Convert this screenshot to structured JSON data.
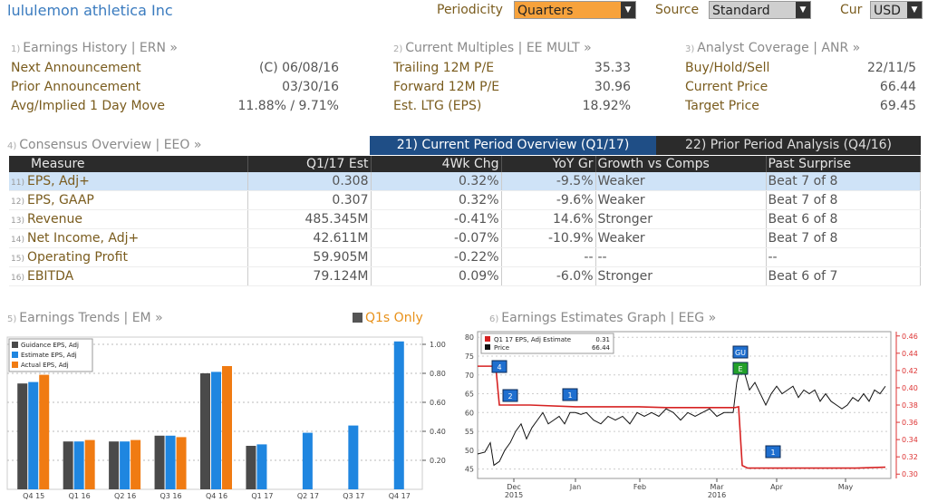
{
  "header": {
    "company": "lululemon athletica Inc",
    "periodicity_label": "Periodicity",
    "periodicity_value": "Quarters",
    "source_label": "Source",
    "source_value": "Standard",
    "cur_label": "Cur",
    "cur_value": "USD"
  },
  "earnings_history": {
    "num": "1)",
    "title": "Earnings History | ERN »",
    "rows": [
      {
        "label": "Next Announcement",
        "value": "(C)  06/08/16"
      },
      {
        "label": "Prior Announcement",
        "value": "03/30/16"
      },
      {
        "label": "Avg/Implied 1 Day Move",
        "value": "11.88% / 9.71%"
      }
    ]
  },
  "current_multiples": {
    "num": "2)",
    "title": "Current Multiples | EE MULT »",
    "rows": [
      {
        "label": "Trailing 12M P/E",
        "value": "35.33"
      },
      {
        "label": "Forward 12M P/E",
        "value": "30.96"
      },
      {
        "label": "Est. LTG (EPS)",
        "value": "18.92%"
      }
    ]
  },
  "analyst_coverage": {
    "num": "3)",
    "title": "Analyst Coverage | ANR »",
    "rows": [
      {
        "label": "Buy/Hold/Sell",
        "value": "22/11/5"
      },
      {
        "label": "Current Price",
        "value": "66.44"
      },
      {
        "label": "Target Price",
        "value": "69.45"
      }
    ]
  },
  "consensus": {
    "num": "4)",
    "title": "Consensus Overview | EEO »",
    "tab_current": "21) Current Period Overview (Q1/17)",
    "tab_prior": "22) Prior Period Analysis (Q4/16)",
    "columns": [
      "Measure",
      "Q1/17 Est",
      "4Wk Chg",
      "YoY Gr",
      "Growth vs Comps",
      "Past Surprise"
    ],
    "rows": [
      {
        "num": "11)",
        "measure": "EPS, Adj+",
        "est": "0.308",
        "chg": "0.32%",
        "yoy": "-9.5%",
        "growth": "Weaker",
        "surprise": "Beat 7 of 8"
      },
      {
        "num": "12)",
        "measure": "EPS, GAAP",
        "est": "0.307",
        "chg": "0.32%",
        "yoy": "-9.6%",
        "growth": "Weaker",
        "surprise": "Beat 7 of 8"
      },
      {
        "num": "13)",
        "measure": "Revenue",
        "est": "485.345M",
        "chg": "-0.41%",
        "yoy": "14.6%",
        "growth": "Stronger",
        "surprise": "Beat 6 of 8"
      },
      {
        "num": "14)",
        "measure": "Net Income, Adj+",
        "est": "42.611M",
        "chg": "-0.07%",
        "yoy": "-10.9%",
        "growth": "Weaker",
        "surprise": "Beat 7 of 8"
      },
      {
        "num": "15)",
        "measure": "Operating Profit",
        "est": "59.905M",
        "chg": "-0.22%",
        "yoy": "--",
        "growth": "--",
        "surprise": "--"
      },
      {
        "num": "16)",
        "measure": "EBITDA",
        "est": "79.124M",
        "chg": "0.09%",
        "yoy": "-6.0%",
        "growth": "Stronger",
        "surprise": "Beat 6 of 7"
      }
    ]
  },
  "trends": {
    "num": "5)",
    "title": "Earnings Trends | EM »",
    "q1_only": "Q1s Only",
    "legend": [
      "Guidance EPS, Adj",
      "Estimate EPS, Adj",
      "Actual EPS, Adj"
    ],
    "colors": {
      "guidance": "#4a4a4a",
      "estimate": "#1f86e0",
      "actual": "#f07b12"
    },
    "y_ticks": [
      "1.00",
      "0.80",
      "0.60",
      "0.40",
      "0.20"
    ]
  },
  "estimates_graph": {
    "num": "6)",
    "title": "Earnings Estimates Graph | EEG »",
    "legend_eps": "Q1 17 EPS, Adj Estimate",
    "legend_eps_val": "0.31",
    "legend_price": "Price",
    "legend_price_val": "66.44",
    "left_ticks": [
      "80",
      "75",
      "70",
      "65",
      "60",
      "55",
      "50",
      "45"
    ],
    "right_ticks": [
      "0.46",
      "0.44",
      "0.42",
      "0.40",
      "0.38",
      "0.36",
      "0.34",
      "0.32",
      "0.30"
    ],
    "x_labels": [
      {
        "m": "Dec",
        "y": "2015"
      },
      {
        "m": "Jan",
        "y": ""
      },
      {
        "m": "Feb",
        "y": ""
      },
      {
        "m": "Mar",
        "y": "2016"
      },
      {
        "m": "Apr",
        "y": ""
      },
      {
        "m": "May",
        "y": ""
      }
    ],
    "markers": [
      {
        "label": "4",
        "color": "#1f6fcf"
      },
      {
        "label": "2",
        "color": "#1f6fcf"
      },
      {
        "label": "1",
        "color": "#1f6fcf"
      },
      {
        "label": "GU",
        "color": "#1f6fcf"
      },
      {
        "label": "E",
        "color": "#22a02a"
      },
      {
        "label": "1",
        "color": "#1f6fcf"
      }
    ]
  },
  "chart_data": {
    "type": "bar",
    "categories": [
      "Q4 15",
      "Q1 16",
      "Q2 16",
      "Q3 16",
      "Q4 16",
      "Q1 17",
      "Q2 17",
      "Q3 17",
      "Q4 17"
    ],
    "series": [
      {
        "name": "Guidance EPS, Adj",
        "values": [
          0.73,
          0.33,
          0.33,
          0.37,
          0.8,
          0.3,
          null,
          null,
          null
        ]
      },
      {
        "name": "Estimate EPS, Adj",
        "values": [
          0.74,
          0.33,
          0.33,
          0.37,
          0.81,
          0.31,
          0.39,
          0.44,
          1.02
        ]
      },
      {
        "name": "Actual EPS, Adj",
        "values": [
          0.79,
          0.34,
          0.34,
          0.36,
          0.85,
          null,
          null,
          null,
          null
        ]
      }
    ],
    "ylim": [
      0,
      1.05
    ],
    "legend": "top-left"
  }
}
